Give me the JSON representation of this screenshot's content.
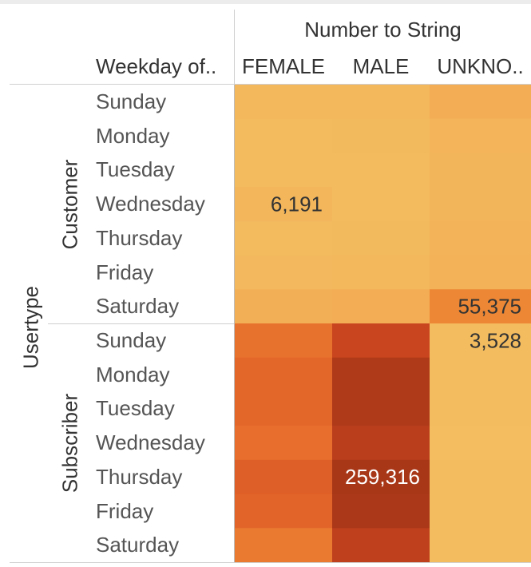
{
  "chart_data": {
    "type": "heatmap",
    "row_dimension": "Usertype",
    "row_subdimension": "Weekday of..",
    "column_group_title": "Number to String",
    "columns": [
      "FEMALE",
      "MALE",
      "UNKNO.."
    ],
    "groups": [
      {
        "name": "Customer",
        "rows": [
          {
            "day": "Sunday",
            "values": [
              5800,
              5900,
              12000
            ]
          },
          {
            "day": "Monday",
            "values": [
              4200,
              4600,
              7500
            ]
          },
          {
            "day": "Tuesday",
            "values": [
              4000,
              4300,
              7200
            ]
          },
          {
            "day": "Wednesday",
            "values": [
              6191,
              4200,
              7000
            ]
          },
          {
            "day": "Thursday",
            "values": [
              4500,
              4800,
              8200
            ]
          },
          {
            "day": "Friday",
            "values": [
              5200,
              5600,
              9500
            ]
          },
          {
            "day": "Saturday",
            "values": [
              11000,
              12000,
              55375
            ]
          }
        ]
      },
      {
        "name": "Subscriber",
        "rows": [
          {
            "day": "Sunday",
            "values": [
              80000,
              165000,
              3528
            ]
          },
          {
            "day": "Monday",
            "values": [
              95000,
              240000,
              3200
            ]
          },
          {
            "day": "Tuesday",
            "values": [
              96000,
              238000,
              3300
            ]
          },
          {
            "day": "Wednesday",
            "values": [
              85000,
              205000,
              3100
            ]
          },
          {
            "day": "Thursday",
            "values": [
              110000,
              259316,
              3250
            ]
          },
          {
            "day": "Friday",
            "values": [
              100000,
              252000,
              3300
            ]
          },
          {
            "day": "Saturday",
            "values": [
              70000,
              195000,
              3400
            ]
          }
        ]
      }
    ],
    "labeled_cells": [
      {
        "group": 0,
        "row": 3,
        "col": 0,
        "text": "6,191"
      },
      {
        "group": 0,
        "row": 6,
        "col": 2,
        "text": "55,375"
      },
      {
        "group": 1,
        "row": 0,
        "col": 2,
        "text": "3,528"
      },
      {
        "group": 1,
        "row": 4,
        "col": 1,
        "text": "259,316"
      }
    ],
    "color_scale": [
      "#f2cc6a",
      "#f3b057",
      "#f0953a",
      "#e5682a",
      "#c9441f",
      "#a83718"
    ],
    "value_range": [
      0,
      260000
    ]
  }
}
